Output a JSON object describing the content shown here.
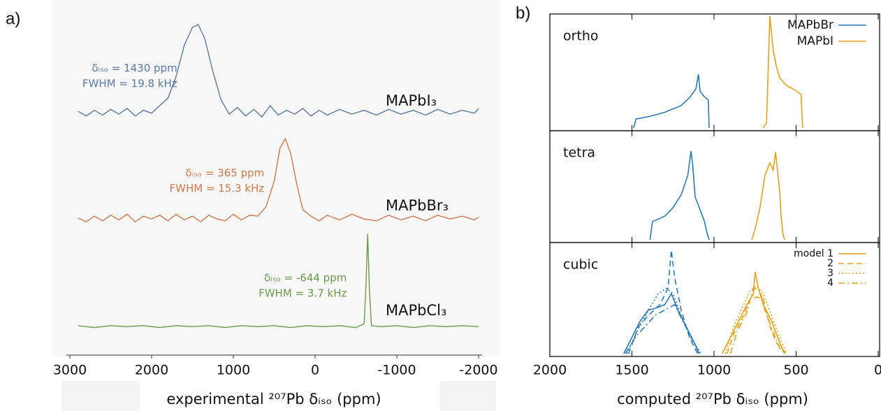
{
  "chart_data": [
    {
      "type": "line",
      "panel_label": "a)",
      "xlabel": "experimental ²⁰⁷Pb δᵢₛₒ (ppm)",
      "xlim": [
        3000,
        -2000
      ],
      "xticks": [
        3000,
        2000,
        1000,
        0,
        -1000,
        -2000
      ],
      "ylim": [
        0,
        100
      ],
      "series": [
        {
          "name": "MAPbI₃",
          "color": "#5b7aa2",
          "annotations": [
            "δᵢₛₒ = 1430 ppm",
            "FWHM = 19.8 kHz"
          ],
          "x": [
            2900,
            2800,
            2700,
            2600,
            2500,
            2400,
            2300,
            2200,
            2100,
            2000,
            1900,
            1800,
            1700,
            1600,
            1500,
            1430,
            1350,
            1250,
            1150,
            1050,
            950,
            850,
            750,
            650,
            550,
            450,
            350,
            250,
            150,
            50,
            -50,
            -150,
            -300,
            -450,
            -600,
            -750,
            -900,
            -1050,
            -1200,
            -1350,
            -1500,
            -1650,
            -1800,
            -1950,
            -2000
          ],
          "values": [
            8,
            3,
            9,
            4,
            10,
            5,
            11,
            3,
            9,
            6,
            14,
            22,
            45,
            78,
            97,
            100,
            85,
            50,
            20,
            5,
            12,
            3,
            10,
            2,
            14,
            4,
            9,
            5,
            11,
            3,
            9,
            4,
            10,
            5,
            9,
            4,
            10,
            5,
            9,
            4,
            10,
            5,
            9,
            6,
            11
          ]
        },
        {
          "name": "MAPbBr₃",
          "color": "#d2774a",
          "annotations": [
            "δᵢₛₒ = 365 ppm",
            "FWHM = 15.3 kHz"
          ],
          "x": [
            2900,
            2800,
            2700,
            2600,
            2500,
            2400,
            2300,
            2200,
            2100,
            2000,
            1900,
            1800,
            1700,
            1600,
            1500,
            1400,
            1300,
            1200,
            1100,
            1000,
            900,
            800,
            700,
            600,
            500,
            430,
            365,
            300,
            220,
            150,
            50,
            -50,
            -150,
            -300,
            -450,
            -600,
            -750,
            -900,
            -1050,
            -1200,
            -1350,
            -1500,
            -1650,
            -1800,
            -1950,
            -2000
          ],
          "values": [
            6,
            2,
            8,
            3,
            9,
            4,
            10,
            2,
            8,
            5,
            9,
            3,
            10,
            4,
            8,
            2,
            9,
            5,
            3,
            10,
            4,
            9,
            8,
            18,
            45,
            80,
            90,
            75,
            40,
            15,
            8,
            3,
            9,
            4,
            10,
            5,
            3,
            9,
            4,
            8,
            3,
            9,
            5,
            8,
            4,
            7
          ]
        },
        {
          "name": "MAPbCl₃",
          "color": "#6a9a4a",
          "annotations": [
            "δᵢₛₒ = -644 ppm",
            "FWHM = 3.7 kHz"
          ],
          "x": [
            2900,
            2700,
            2500,
            2300,
            2100,
            1900,
            1700,
            1500,
            1300,
            1100,
            900,
            700,
            500,
            300,
            100,
            -100,
            -300,
            -500,
            -600,
            -620,
            -644,
            -665,
            -690,
            -800,
            -1000,
            -1200,
            -1400,
            -1600,
            -1800,
            -2000
          ],
          "values": [
            3,
            1,
            3,
            2,
            3,
            1,
            3,
            2,
            3,
            1,
            3,
            2,
            3,
            1,
            3,
            2,
            3,
            1,
            5,
            40,
            100,
            40,
            3,
            2,
            3,
            1,
            3,
            2,
            3,
            2
          ]
        }
      ]
    },
    {
      "type": "line",
      "panel_label": "b)",
      "xlabel": "computed ²⁰⁷Pb δᵢₛₒ (ppm)",
      "xlim": [
        2000,
        0
      ],
      "xticks": [
        2000,
        1500,
        1000,
        500,
        0
      ],
      "ylim": [
        0,
        100
      ],
      "panels": [
        {
          "label": "ortho",
          "legend": true,
          "series": [
            {
              "name": "MAPbBr",
              "color": "#2a7ab8",
              "dash": "solid",
              "x": [
                1490,
                1475,
                1400,
                1300,
                1200,
                1150,
                1110,
                1095,
                1085,
                1060,
                1035,
                1030
              ],
              "values": [
                0,
                8,
                10,
                14,
                20,
                27,
                35,
                48,
                33,
                28,
                25,
                0
              ]
            },
            {
              "name": "MAPbI",
              "color": "#e6a117",
              "dash": "solid",
              "x": [
                700,
                680,
                660,
                640,
                620,
                600,
                560,
                520,
                470,
                460
              ],
              "values": [
                0,
                5,
                100,
                70,
                55,
                45,
                38,
                35,
                30,
                0
              ]
            }
          ]
        },
        {
          "label": "tetra",
          "legend": false,
          "series": [
            {
              "name": "MAPbBr",
              "color": "#2a7ab8",
              "dash": "solid",
              "x": [
                1390,
                1375,
                1300,
                1250,
                1200,
                1160,
                1140,
                1130,
                1115,
                1090,
                1060,
                1040,
                1030
              ],
              "values": [
                0,
                17,
                22,
                30,
                42,
                60,
                83,
                70,
                40,
                30,
                18,
                5,
                0
              ]
            },
            {
              "name": "MAPbI",
              "color": "#e6a117",
              "dash": "solid",
              "x": [
                770,
                750,
                720,
                690,
                660,
                640,
                625,
                600,
                590,
                580,
                570
              ],
              "values": [
                0,
                10,
                30,
                60,
                72,
                65,
                82,
                45,
                20,
                5,
                0
              ]
            }
          ]
        },
        {
          "label": "cubic",
          "legend": true,
          "series": [
            {
              "name": "model 1",
              "color": "#e6a117",
              "dash": "solid",
              "x": [
                950,
                900,
                850,
                800,
                760,
                750,
                730,
                700,
                650,
                600,
                570
              ],
              "values": [
                0,
                15,
                30,
                45,
                55,
                75,
                60,
                45,
                30,
                10,
                0
              ]
            },
            {
              "name": "2",
              "color": "#e6a117",
              "dash": "dashed",
              "x": [
                920,
                880,
                820,
                780,
                740,
                700,
                660,
                620,
                560
              ],
              "values": [
                0,
                18,
                35,
                50,
                52,
                50,
                25,
                10,
                0
              ]
            },
            {
              "name": "3",
              "color": "#e6a117",
              "dash": "dotted",
              "x": [
                930,
                880,
                820,
                780,
                740,
                700,
                650,
                600,
                560
              ],
              "values": [
                0,
                25,
                45,
                58,
                62,
                55,
                35,
                15,
                0
              ]
            },
            {
              "name": "4",
              "color": "#e6a117",
              "dash": "dashdot",
              "x": [
                900,
                860,
                800,
                760,
                720,
                690,
                640,
                600,
                570
              ],
              "values": [
                0,
                20,
                38,
                60,
                58,
                40,
                20,
                5,
                0
              ]
            },
            {
              "name": "model 1",
              "color": "#2a7ab8",
              "dash": "solid",
              "x": [
                1550,
                1500,
                1450,
                1400,
                1350,
                1300,
                1260,
                1220,
                1170,
                1120,
                1090
              ],
              "values": [
                0,
                15,
                30,
                40,
                42,
                45,
                55,
                40,
                25,
                10,
                0
              ]
            },
            {
              "name": "2",
              "color": "#2a7ab8",
              "dash": "dashed",
              "x": [
                1520,
                1460,
                1400,
                1330,
                1280,
                1260,
                1240,
                1200,
                1150,
                1100
              ],
              "values": [
                0,
                25,
                35,
                45,
                60,
                95,
                70,
                40,
                15,
                0
              ]
            },
            {
              "name": "3",
              "color": "#2a7ab8",
              "dash": "dotted",
              "x": [
                1530,
                1470,
                1400,
                1340,
                1290,
                1250,
                1200,
                1140,
                1080
              ],
              "values": [
                0,
                20,
                40,
                55,
                60,
                55,
                35,
                15,
                0
              ]
            },
            {
              "name": "4",
              "color": "#2a7ab8",
              "dash": "dashdot",
              "x": [
                1540,
                1480,
                1420,
                1360,
                1300,
                1240,
                1190,
                1140,
                1090
              ],
              "values": [
                0,
                15,
                25,
                35,
                40,
                45,
                30,
                15,
                0
              ]
            }
          ]
        }
      ]
    }
  ]
}
